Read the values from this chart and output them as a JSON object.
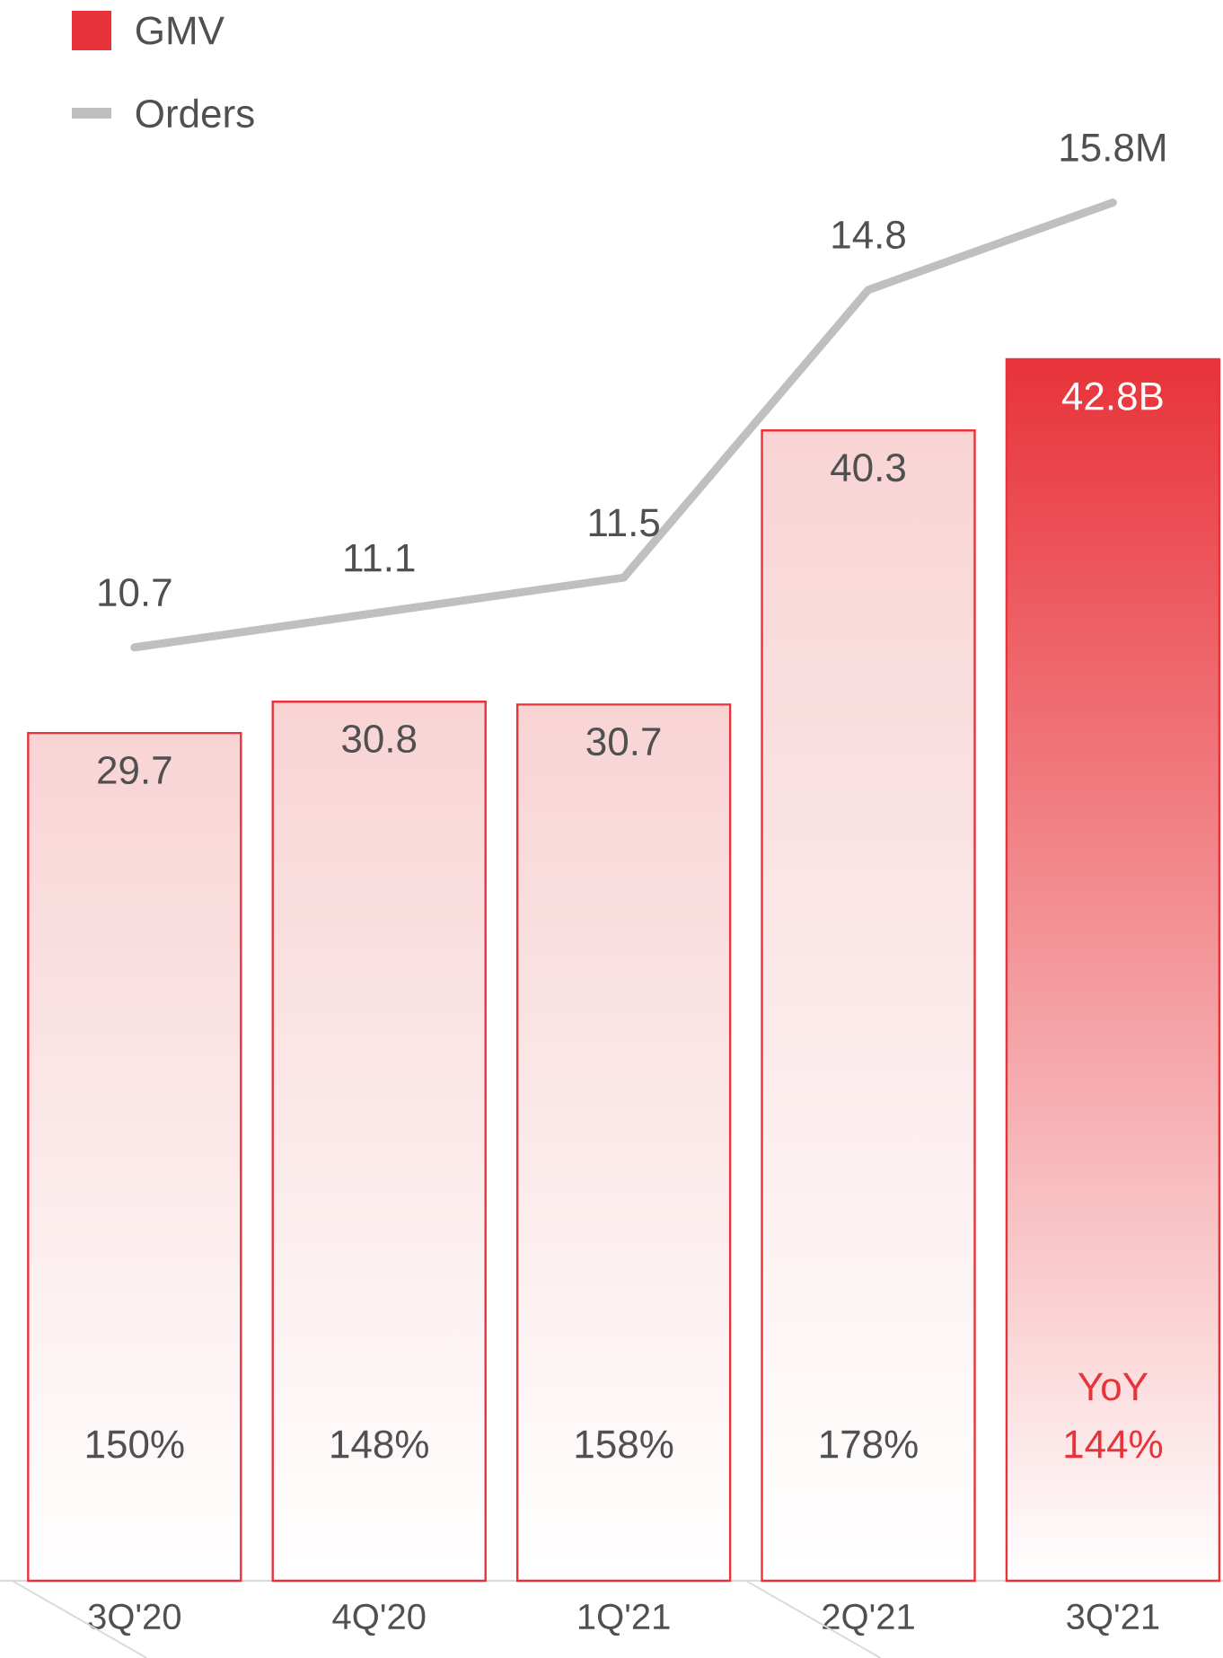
{
  "chart_data": {
    "type": "bar",
    "categories": [
      "3Q'20",
      "4Q'20",
      "1Q'21",
      "2Q'21",
      "3Q'21"
    ],
    "series": [
      {
        "name": "GMV",
        "color": "#e8333a",
        "colors": [
          "#f8d3d4",
          "#f8d3d4",
          "#f8d3d4",
          "#f8d3d4",
          "#e8333a"
        ],
        "values": [
          29.7,
          30.8,
          30.7,
          40.3,
          42.8
        ],
        "value_labels": [
          "29.7",
          "30.8",
          "30.7",
          "40.3",
          "42.8B"
        ]
      },
      {
        "name": "Orders",
        "type": "line",
        "axis": "y2",
        "color": "#bfbfbf",
        "values": [
          10.7,
          11.1,
          11.5,
          14.8,
          15.8
        ],
        "value_labels": [
          "10.7",
          "11.1",
          "11.5",
          "14.8",
          "15.8M"
        ]
      }
    ],
    "legend": "top left",
    "annotations": [
      "150%",
      "148%",
      "158%",
      "178%",
      "144%",
      "YoY"
    ]
  }
}
